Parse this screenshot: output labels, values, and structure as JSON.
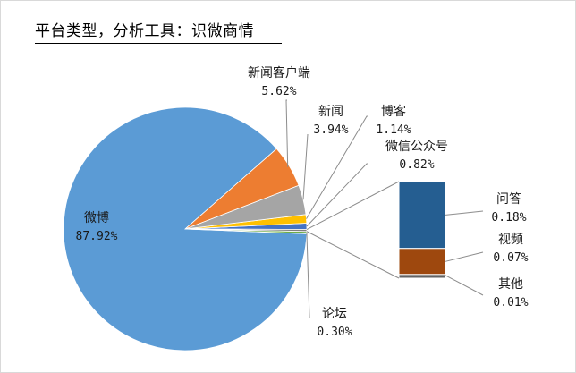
{
  "title": "平台类型，分析工具：识微商情",
  "colors": {
    "weibo": "#5b9bd5",
    "news_client": "#ed7d31",
    "news": "#a5a5a5",
    "blog": "#ffc000",
    "wechat": "#4472c4",
    "forum": "#70ad47",
    "qa": "#255e91",
    "video": "#9e480e",
    "other": "#636363"
  },
  "chart_data": {
    "type": "pie",
    "subtype": "bar-of-pie",
    "title": "平台类型，分析工具：识微商情",
    "slices": [
      {
        "key": "weibo",
        "name": "微博",
        "value": 87.92,
        "label": "87.92%"
      },
      {
        "key": "news_client",
        "name": "新闻客户端",
        "value": 5.62,
        "label": "5.62%"
      },
      {
        "key": "news",
        "name": "新闻",
        "value": 3.94,
        "label": "3.94%"
      },
      {
        "key": "blog",
        "name": "博客",
        "value": 1.14,
        "label": "1.14%"
      },
      {
        "key": "wechat",
        "name": "微信公众号",
        "value": 0.82,
        "label": "0.82%"
      },
      {
        "key": "forum",
        "name": "论坛",
        "value": 0.3,
        "label": "0.30%"
      }
    ],
    "secondary_bar": [
      {
        "key": "qa",
        "name": "问答",
        "value": 0.18,
        "label": "0.18%"
      },
      {
        "key": "video",
        "name": "视频",
        "value": 0.07,
        "label": "0.07%"
      },
      {
        "key": "other",
        "name": "其他",
        "value": 0.01,
        "label": "0.01%"
      }
    ],
    "legend": "none"
  }
}
